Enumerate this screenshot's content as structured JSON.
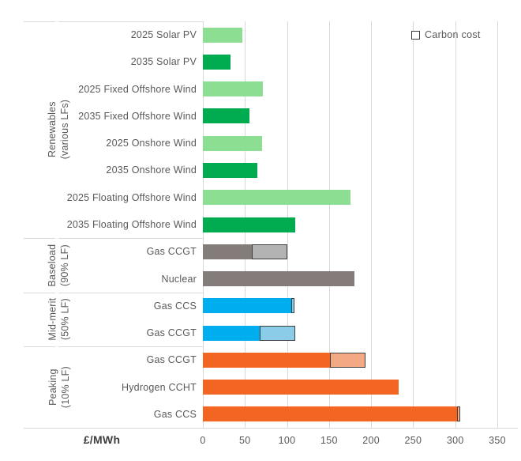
{
  "chart_data": {
    "type": "bar",
    "orientation": "horizontal",
    "xlabel": "£/MWh",
    "xlim": [
      0,
      350
    ],
    "xticks": [
      0,
      50,
      100,
      150,
      200,
      250,
      300,
      350
    ],
    "grid": true,
    "legend_position": "top-right",
    "legend": [
      {
        "label": "Carbon cost",
        "swatch_fill": "#FFFFFF",
        "swatch_border": "#3F3F3F"
      }
    ],
    "groups": [
      {
        "label_line1": "Renewables",
        "label_line2": "(various LFs)",
        "rows": [
          {
            "label": "2025 Solar PV",
            "value": 47,
            "carbon": 0,
            "color": "light_green"
          },
          {
            "label": "2035 Solar PV",
            "value": 33,
            "carbon": 0,
            "color": "dark_green"
          },
          {
            "label": "2025 Fixed Offshore Wind",
            "value": 71,
            "carbon": 0,
            "color": "light_green"
          },
          {
            "label": "2035 Fixed Offshore Wind",
            "value": 55,
            "carbon": 0,
            "color": "dark_green"
          },
          {
            "label": "2025 Onshore Wind",
            "value": 70,
            "carbon": 0,
            "color": "light_green"
          },
          {
            "label": "2035 Onshore Wind",
            "value": 65,
            "carbon": 0,
            "color": "dark_green"
          },
          {
            "label": "2025 Floating Offshore Wind",
            "value": 175,
            "carbon": 0,
            "color": "light_green"
          },
          {
            "label": "2035 Floating Offshore Wind",
            "value": 110,
            "carbon": 0,
            "color": "dark_green"
          }
        ]
      },
      {
        "label_line1": "Baseload",
        "label_line2": "(90% LF)",
        "rows": [
          {
            "label": "Gas CCGT",
            "value": 58,
            "carbon": 42,
            "color": "gray",
            "carbon_color": "carbon_gray"
          },
          {
            "label": "Nuclear",
            "value": 180,
            "carbon": 0,
            "color": "gray"
          }
        ]
      },
      {
        "label_line1": "Mid-merit",
        "label_line2": "(50% LF)",
        "rows": [
          {
            "label": "Gas CCS",
            "value": 105,
            "carbon": 4,
            "color": "blue",
            "carbon_color": "carbon_blue"
          },
          {
            "label": "Gas CCGT",
            "value": 68,
            "carbon": 42,
            "color": "blue",
            "carbon_color": "carbon_blue"
          }
        ]
      },
      {
        "label_line1": "Peaking",
        "label_line2": "(10% LF)",
        "rows": [
          {
            "label": "Gas CCGT",
            "value": 151,
            "carbon": 42,
            "color": "orange",
            "carbon_color": "carbon_orange"
          },
          {
            "label": "Hydrogen CCHT",
            "value": 233,
            "carbon": 0,
            "color": "orange"
          },
          {
            "label": "Gas CCS",
            "value": 302,
            "carbon": 4,
            "color": "orange",
            "carbon_color": "carbon_orange"
          }
        ]
      }
    ],
    "palette": {
      "light_green": "#8BDE92",
      "dark_green": "#00AC4F",
      "gray": "#847C7A",
      "carbon_gray": "#B3B3B3",
      "blue": "#00AEEF",
      "carbon_blue": "#8BCDE9",
      "orange": "#F26522",
      "carbon_orange": "#F3AA84",
      "segment_border": "#3F3F3F",
      "grid": "#D9D9D9",
      "axis_text": "#595959"
    }
  }
}
